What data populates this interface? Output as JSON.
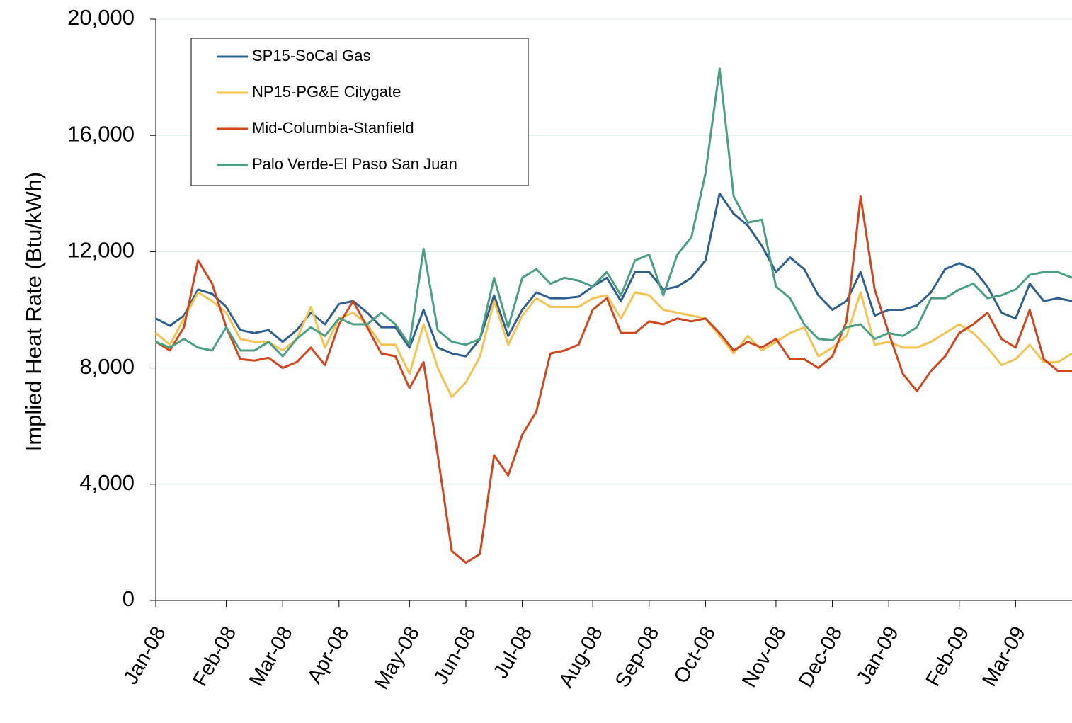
{
  "chart_data": {
    "type": "line",
    "y_label": "Implied Heat Rate (Btu/kWh)",
    "categories": [
      "Jan-08",
      null,
      null,
      null,
      null,
      "Feb-08",
      null,
      null,
      null,
      "Mar-08",
      null,
      null,
      null,
      "Apr-08",
      null,
      null,
      null,
      null,
      "May-08",
      null,
      null,
      null,
      "Jun-08",
      null,
      null,
      null,
      "Jul-08",
      null,
      null,
      null,
      null,
      "Aug-08",
      null,
      null,
      null,
      "Sep-08",
      null,
      null,
      null,
      "Oct-08",
      null,
      null,
      null,
      null,
      "Nov-08",
      null,
      null,
      null,
      "Dec-08",
      null,
      null,
      null,
      "Jan-09",
      null,
      null,
      null,
      null,
      "Feb-09",
      null,
      null,
      null,
      "Mar-09",
      null,
      null,
      null,
      null
    ],
    "ylim": [
      0,
      20000
    ],
    "yticks": [
      0,
      {
        "value": 4000,
        "label": "4,000"
      },
      {
        "value": 8000,
        "label": "8,000"
      },
      {
        "value": 12000,
        "label": "12,000"
      },
      {
        "value": 16000,
        "label": "16,000"
      },
      {
        "value": 20000,
        "label": "20,000"
      }
    ],
    "grid": true,
    "legend": "top-left",
    "series": [
      {
        "name": "SP15-SoCal Gas",
        "color": "#2e5f91",
        "values": [
          9700,
          9450,
          9800,
          10700,
          10550,
          10100,
          9300,
          9200,
          9300,
          8900,
          9300,
          9900,
          9500,
          10200,
          10300,
          9900,
          9400,
          9400,
          8700,
          10000,
          8700,
          8500,
          8400,
          9000,
          10500,
          9100,
          10000,
          10600,
          10400,
          10400,
          10450,
          10800,
          11100,
          10300,
          11300,
          11300,
          10700,
          10800,
          11100,
          11700,
          14000,
          13300,
          12900,
          12200,
          11300,
          11800,
          11400,
          10500,
          10000,
          10300,
          11300,
          9800,
          10000,
          10000,
          10150,
          10600,
          11400,
          11600,
          11400,
          10800,
          9900,
          9700,
          10900,
          10300,
          10400,
          10300
        ]
      },
      {
        "name": "NP15-PG&E Citygate",
        "color": "#f5c350",
        "values": [
          9200,
          8800,
          9700,
          10600,
          10300,
          9900,
          9000,
          8900,
          8900,
          8600,
          9000,
          10100,
          8700,
          9700,
          9900,
          9500,
          8800,
          8800,
          7800,
          9500,
          8000,
          7000,
          7500,
          8400,
          10300,
          8800,
          9800,
          10400,
          10100,
          10100,
          10100,
          10400,
          10500,
          9700,
          10600,
          10500,
          10000,
          9900,
          9800,
          9700,
          9100,
          8500,
          9100,
          8600,
          8900,
          9200,
          9400,
          8400,
          8700,
          9100,
          10600,
          8800,
          8900,
          8700,
          8700,
          8900,
          9200,
          9500,
          9200,
          8700,
          8100,
          8300,
          8800,
          8200,
          8200,
          8500
        ]
      },
      {
        "name": "Mid-Columbia-Stanfield",
        "color": "#d2461e",
        "values": [
          8900,
          8600,
          9400,
          11700,
          10900,
          9400,
          8300,
          8250,
          8350,
          8000,
          8200,
          8700,
          8100,
          9500,
          10300,
          9400,
          8500,
          8400,
          7300,
          8200,
          5000,
          1700,
          1300,
          1600,
          5000,
          4300,
          5700,
          6500,
          8500,
          8600,
          8800,
          10000,
          10400,
          9200,
          9200,
          9600,
          9500,
          9700,
          9600,
          9700,
          9200,
          8600,
          8900,
          8700,
          9000,
          8300,
          8300,
          8000,
          8400,
          9600,
          13900,
          10700,
          9200,
          7800,
          7200,
          7900,
          8400,
          9200,
          9500,
          9900,
          9000,
          8700,
          10000,
          8300,
          7900,
          7900
        ]
      },
      {
        "name": "Palo Verde-El Paso San Juan",
        "color": "#4aa082",
        "values": [
          8900,
          8700,
          9000,
          8700,
          8600,
          9400,
          8600,
          8600,
          8900,
          8400,
          9000,
          9400,
          9100,
          9700,
          9500,
          9500,
          9900,
          9500,
          8800,
          12100,
          9300,
          8900,
          8800,
          9000,
          11100,
          9400,
          11100,
          11400,
          10900,
          11100,
          11000,
          10800,
          11300,
          10500,
          11700,
          11900,
          10500,
          11900,
          12500,
          14700,
          18300,
          13900,
          13000,
          13100,
          10800,
          10400,
          9500,
          9000,
          8950,
          9400,
          9500,
          9000,
          9200,
          9100,
          9400,
          10400,
          10400,
          10700,
          10900,
          10400,
          10500,
          10700,
          11200,
          11300,
          11300,
          11100
        ]
      }
    ]
  }
}
